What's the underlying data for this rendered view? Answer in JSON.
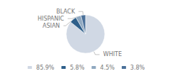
{
  "chart_data": {
    "type": "pie",
    "categories": [
      "WHITE",
      "ASIAN",
      "HISPANIC",
      "BLACK"
    ],
    "values": [
      85.9,
      5.8,
      4.5,
      3.8
    ],
    "value_labels": [
      "85.9%",
      "5.8%",
      "4.5%",
      "3.8%"
    ],
    "colors": [
      "#d0d8e4",
      "#2e5f8a",
      "#8fa8c0",
      "#4a7099"
    ],
    "legend": "bottom"
  }
}
